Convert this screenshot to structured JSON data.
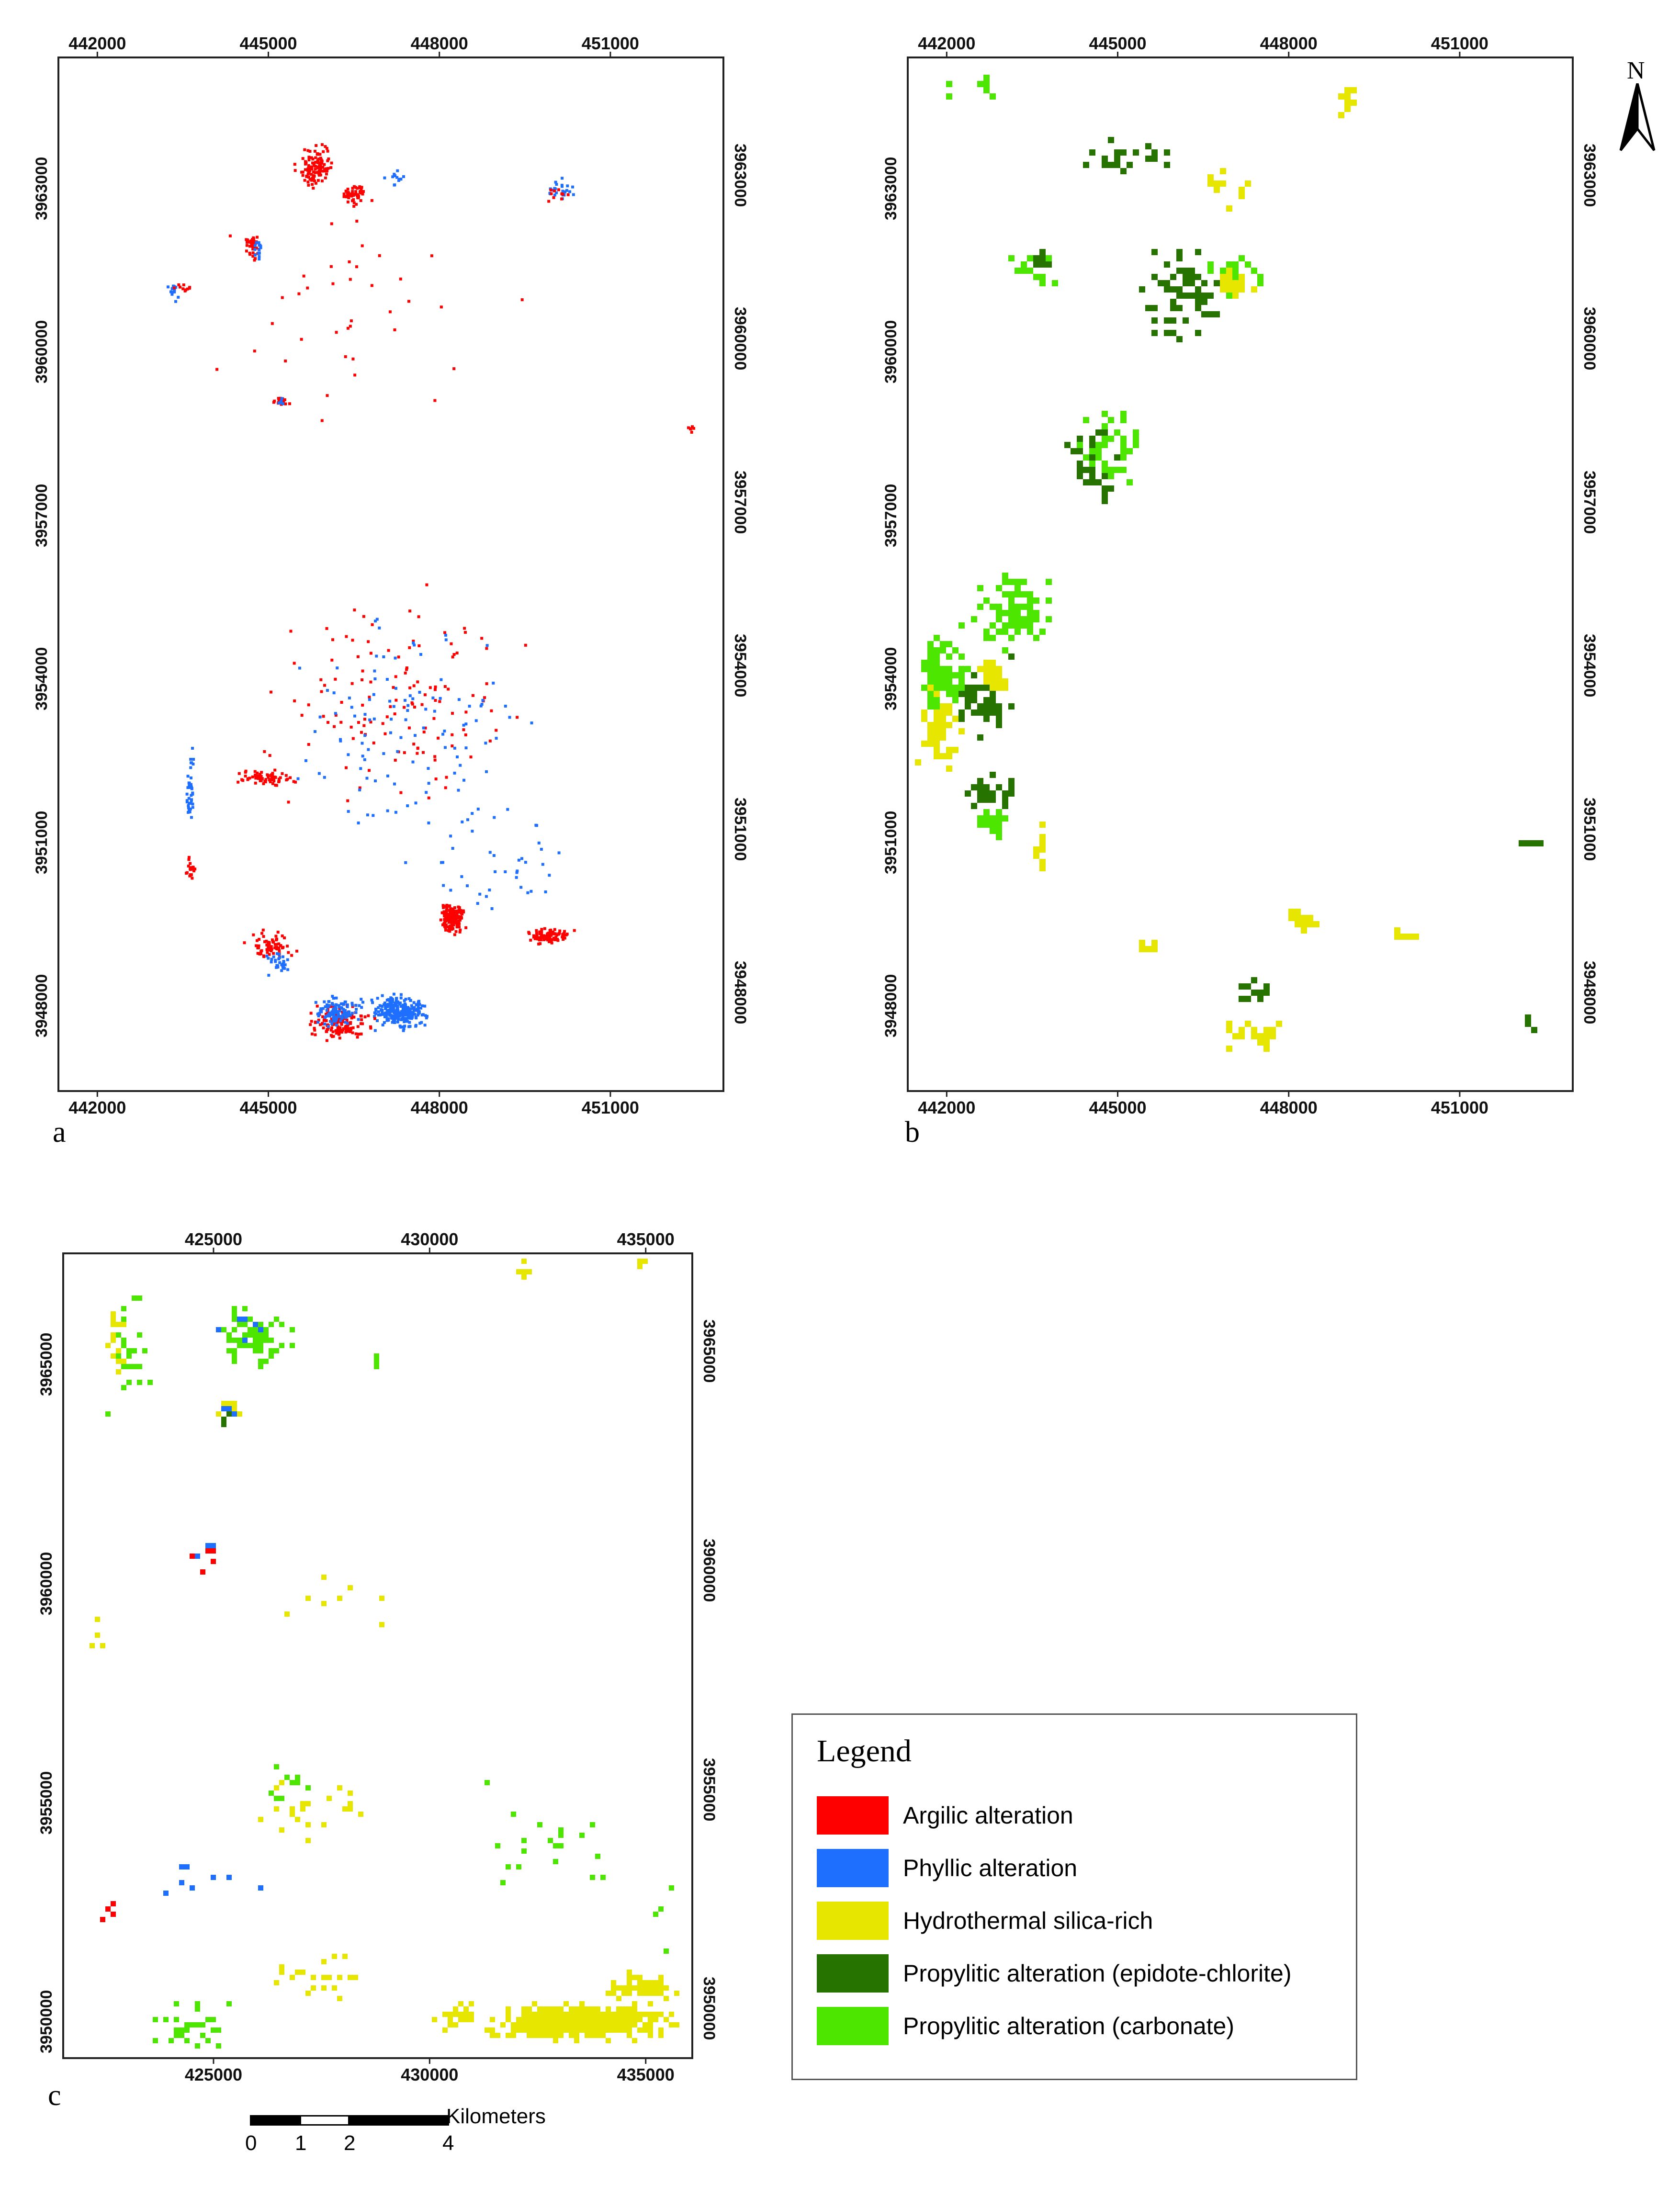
{
  "panels": {
    "a": {
      "letter": "a",
      "x_ticks": [
        "442000",
        "445000",
        "448000",
        "451000"
      ],
      "y_ticks": [
        "3963000",
        "3960000",
        "3957000",
        "3954000",
        "3951000",
        "3948000"
      ],
      "x_range": [
        441300,
        453000
      ],
      "y_range": [
        3946300,
        3965300
      ]
    },
    "b": {
      "letter": "b",
      "x_ticks": [
        "442000",
        "445000",
        "448000",
        "451000"
      ],
      "y_ticks": [
        "3963000",
        "3960000",
        "3957000",
        "3954000",
        "3951000",
        "3948000"
      ],
      "x_range": [
        441300,
        453000
      ],
      "y_range": [
        3946300,
        3965300
      ]
    },
    "c": {
      "letter": "c",
      "x_ticks": [
        "425000",
        "430000",
        "435000"
      ],
      "y_ticks": [
        "3965000",
        "3960000",
        "3955000",
        "3950000"
      ],
      "x_range": [
        421500,
        436100
      ],
      "y_range": [
        3949000,
        3967400
      ]
    }
  },
  "legend": {
    "title": "Legend",
    "items": [
      {
        "label": "Argilic alteration",
        "color": "#ff0000"
      },
      {
        "label": "Phyllic alteration",
        "color": "#1f6fff"
      },
      {
        "label": "Hydrothermal silica-rich",
        "color": "#e6e600"
      },
      {
        "label": "Propylitic alteration (epidote-chlorite)",
        "color": "#267300"
      },
      {
        "label": "Propylitic alteration (carbonate)",
        "color": "#4ce600"
      }
    ]
  },
  "scale_bar": {
    "unit": "Kilometers",
    "labels": [
      "0",
      "1",
      "2",
      "4"
    ]
  },
  "north_arrow": {
    "label": "N",
    "icon": "north-arrow-icon"
  },
  "clusters": {
    "a": [
      {
        "cls": 0,
        "x": 445800,
        "y": 3963300,
        "rx": 400,
        "ry": 500,
        "n": 120
      },
      {
        "cls": 0,
        "x": 446500,
        "y": 3962800,
        "rx": 300,
        "ry": 250,
        "n": 60
      },
      {
        "cls": 0,
        "x": 444700,
        "y": 3961900,
        "rx": 150,
        "ry": 350,
        "n": 40
      },
      {
        "cls": 1,
        "x": 444800,
        "y": 3961800,
        "rx": 120,
        "ry": 250,
        "n": 15
      },
      {
        "cls": 1,
        "x": 443300,
        "y": 3961000,
        "rx": 150,
        "ry": 250,
        "n": 15
      },
      {
        "cls": 0,
        "x": 443500,
        "y": 3961100,
        "rx": 200,
        "ry": 200,
        "n": 10
      },
      {
        "cls": 1,
        "x": 447200,
        "y": 3963100,
        "rx": 250,
        "ry": 200,
        "n": 12
      },
      {
        "cls": 1,
        "x": 450100,
        "y": 3962900,
        "rx": 350,
        "ry": 300,
        "n": 25
      },
      {
        "cls": 0,
        "x": 450000,
        "y": 3962800,
        "rx": 300,
        "ry": 250,
        "n": 10
      },
      {
        "cls": 0,
        "x": 445200,
        "y": 3959000,
        "rx": 200,
        "ry": 100,
        "n": 18
      },
      {
        "cls": 1,
        "x": 445200,
        "y": 3959000,
        "rx": 150,
        "ry": 100,
        "n": 6
      },
      {
        "cls": 0,
        "x": 444900,
        "y": 3952100,
        "rx": 700,
        "ry": 200,
        "n": 70
      },
      {
        "cls": 1,
        "x": 443600,
        "y": 3952000,
        "rx": 100,
        "ry": 900,
        "n": 40
      },
      {
        "cls": 0,
        "x": 443600,
        "y": 3950400,
        "rx": 100,
        "ry": 300,
        "n": 20
      },
      {
        "cls": 0,
        "x": 448200,
        "y": 3949500,
        "rx": 300,
        "ry": 350,
        "n": 160
      },
      {
        "cls": 0,
        "x": 449900,
        "y": 3949200,
        "rx": 500,
        "ry": 180,
        "n": 90
      },
      {
        "cls": 0,
        "x": 445000,
        "y": 3949000,
        "rx": 600,
        "ry": 350,
        "n": 70
      },
      {
        "cls": 1,
        "x": 445200,
        "y": 3948700,
        "rx": 400,
        "ry": 300,
        "n": 30
      },
      {
        "cls": 1,
        "x": 447300,
        "y": 3947800,
        "rx": 600,
        "ry": 400,
        "n": 280
      },
      {
        "cls": 0,
        "x": 446200,
        "y": 3947600,
        "rx": 700,
        "ry": 400,
        "n": 160
      },
      {
        "cls": 1,
        "x": 446200,
        "y": 3947800,
        "rx": 500,
        "ry": 350,
        "n": 120
      },
      {
        "cls": 0,
        "x": 447000,
        "y": 3953500,
        "rx": 3000,
        "ry": 2500,
        "n": 130
      },
      {
        "cls": 1,
        "x": 447300,
        "y": 3953000,
        "rx": 2800,
        "ry": 2700,
        "n": 110
      },
      {
        "cls": 0,
        "x": 446500,
        "y": 3961000,
        "rx": 4000,
        "ry": 3000,
        "n": 40
      },
      {
        "cls": 1,
        "x": 449000,
        "y": 3950500,
        "rx": 1800,
        "ry": 1200,
        "n": 40
      },
      {
        "cls": 0,
        "x": 452400,
        "y": 3958500,
        "rx": 120,
        "ry": 200,
        "n": 6
      }
    ],
    "b": [
      {
        "cls": 4,
        "x": 442000,
        "y": 3954000,
        "rx": 700,
        "ry": 1000,
        "n": 90,
        "s": 1
      },
      {
        "cls": 2,
        "x": 441800,
        "y": 3953000,
        "rx": 500,
        "ry": 900,
        "n": 50,
        "s": 1
      },
      {
        "cls": 3,
        "x": 442600,
        "y": 3953600,
        "rx": 700,
        "ry": 900,
        "n": 60,
        "s": 1
      },
      {
        "cls": 2,
        "x": 442800,
        "y": 3954000,
        "rx": 300,
        "ry": 300,
        "n": 40,
        "s": 1
      },
      {
        "cls": 4,
        "x": 443200,
        "y": 3955200,
        "rx": 900,
        "ry": 900,
        "n": 90,
        "s": 1
      },
      {
        "cls": 4,
        "x": 442800,
        "y": 3951300,
        "rx": 400,
        "ry": 300,
        "n": 30,
        "s": 1
      },
      {
        "cls": 3,
        "x": 442800,
        "y": 3951800,
        "rx": 600,
        "ry": 400,
        "n": 30,
        "s": 1
      },
      {
        "cls": 3,
        "x": 444500,
        "y": 3957800,
        "rx": 600,
        "ry": 800,
        "n": 40,
        "s": 1
      },
      {
        "cls": 4,
        "x": 444800,
        "y": 3958200,
        "rx": 700,
        "ry": 900,
        "n": 40,
        "s": 1
      },
      {
        "cls": 3,
        "x": 446200,
        "y": 3961000,
        "rx": 900,
        "ry": 1200,
        "n": 60,
        "s": 1
      },
      {
        "cls": 4,
        "x": 447000,
        "y": 3961300,
        "rx": 700,
        "ry": 500,
        "n": 40,
        "s": 1
      },
      {
        "cls": 2,
        "x": 447000,
        "y": 3961200,
        "rx": 500,
        "ry": 400,
        "n": 20,
        "s": 1
      },
      {
        "cls": 3,
        "x": 445000,
        "y": 3963500,
        "rx": 1500,
        "ry": 600,
        "n": 20,
        "s": 1
      },
      {
        "cls": 2,
        "x": 446800,
        "y": 3963000,
        "rx": 700,
        "ry": 500,
        "n": 10,
        "s": 1
      },
      {
        "cls": 4,
        "x": 443500,
        "y": 3961500,
        "rx": 700,
        "ry": 500,
        "n": 15,
        "s": 1
      },
      {
        "cls": 3,
        "x": 443600,
        "y": 3961600,
        "rx": 300,
        "ry": 200,
        "n": 10,
        "s": 1
      },
      {
        "cls": 2,
        "x": 448900,
        "y": 3964500,
        "rx": 300,
        "ry": 600,
        "n": 12,
        "s": 1
      },
      {
        "cls": 4,
        "x": 442600,
        "y": 3964800,
        "rx": 900,
        "ry": 400,
        "n": 10,
        "s": 1
      },
      {
        "cls": 2,
        "x": 448200,
        "y": 3949500,
        "rx": 250,
        "ry": 200,
        "n": 30,
        "s": 1
      },
      {
        "cls": 2,
        "x": 450000,
        "y": 3949200,
        "rx": 250,
        "ry": 100,
        "n": 10,
        "s": 1
      },
      {
        "cls": 2,
        "x": 445500,
        "y": 3949000,
        "rx": 300,
        "ry": 200,
        "n": 10,
        "s": 1
      },
      {
        "cls": 2,
        "x": 447300,
        "y": 3947400,
        "rx": 900,
        "ry": 400,
        "n": 25,
        "s": 1
      },
      {
        "cls": 3,
        "x": 447300,
        "y": 3948200,
        "rx": 500,
        "ry": 400,
        "n": 15,
        "s": 1
      },
      {
        "cls": 2,
        "x": 443600,
        "y": 3950800,
        "rx": 80,
        "ry": 700,
        "n": 10,
        "s": 1
      },
      {
        "cls": 3,
        "x": 452200,
        "y": 3950900,
        "rx": 300,
        "ry": 200,
        "n": 4,
        "s": 1
      },
      {
        "cls": 3,
        "x": 452200,
        "y": 3947600,
        "rx": 200,
        "ry": 200,
        "n": 3,
        "s": 1
      }
    ],
    "c": [
      {
        "cls": 4,
        "x": 423000,
        "y": 3965200,
        "rx": 700,
        "ry": 1700,
        "n": 28,
        "s": 1
      },
      {
        "cls": 2,
        "x": 422700,
        "y": 3965500,
        "rx": 400,
        "ry": 1400,
        "n": 20,
        "s": 1
      },
      {
        "cls": 4,
        "x": 425900,
        "y": 3965500,
        "rx": 1100,
        "ry": 800,
        "n": 70,
        "s": 1
      },
      {
        "cls": 1,
        "x": 425600,
        "y": 3965700,
        "rx": 600,
        "ry": 500,
        "n": 6,
        "s": 0
      },
      {
        "cls": 0,
        "x": 425300,
        "y": 3963900,
        "rx": 250,
        "ry": 250,
        "n": 15,
        "s": 0
      },
      {
        "cls": 2,
        "x": 425300,
        "y": 3963900,
        "rx": 300,
        "ry": 300,
        "n": 15,
        "s": 0
      },
      {
        "cls": 1,
        "x": 425200,
        "y": 3963800,
        "rx": 250,
        "ry": 300,
        "n": 6,
        "s": 0
      },
      {
        "cls": 3,
        "x": 425200,
        "y": 3963700,
        "rx": 200,
        "ry": 200,
        "n": 4,
        "s": 0
      },
      {
        "cls": 4,
        "x": 428700,
        "y": 3964900,
        "rx": 400,
        "ry": 300,
        "n": 3,
        "s": 1
      },
      {
        "cls": 2,
        "x": 432200,
        "y": 3967100,
        "rx": 400,
        "ry": 300,
        "n": 5,
        "s": 1
      },
      {
        "cls": 2,
        "x": 434800,
        "y": 3967200,
        "rx": 300,
        "ry": 200,
        "n": 3,
        "s": 1
      },
      {
        "cls": 2,
        "x": 422300,
        "y": 3958700,
        "rx": 200,
        "ry": 700,
        "n": 8,
        "s": 1
      },
      {
        "cls": 0,
        "x": 424700,
        "y": 3960400,
        "rx": 600,
        "ry": 600,
        "n": 6,
        "s": 0
      },
      {
        "cls": 1,
        "x": 424700,
        "y": 3960700,
        "rx": 300,
        "ry": 300,
        "n": 3,
        "s": 0
      },
      {
        "cls": 2,
        "x": 428000,
        "y": 3959700,
        "rx": 2300,
        "ry": 900,
        "n": 8,
        "s": 1
      },
      {
        "cls": 4,
        "x": 426600,
        "y": 3955300,
        "rx": 700,
        "ry": 700,
        "n": 10,
        "s": 1
      },
      {
        "cls": 2,
        "x": 427200,
        "y": 3954800,
        "rx": 1600,
        "ry": 800,
        "n": 22,
        "s": 1
      },
      {
        "cls": 4,
        "x": 432500,
        "y": 3954000,
        "rx": 2200,
        "ry": 1600,
        "n": 20,
        "s": 1
      },
      {
        "cls": 1,
        "x": 424500,
        "y": 3953200,
        "rx": 2500,
        "ry": 1200,
        "n": 8,
        "s": 0
      },
      {
        "cls": 0,
        "x": 422600,
        "y": 3952400,
        "rx": 300,
        "ry": 600,
        "n": 4,
        "s": 0
      },
      {
        "cls": 2,
        "x": 427600,
        "y": 3951000,
        "rx": 2600,
        "ry": 800,
        "n": 22,
        "s": 1
      },
      {
        "cls": 4,
        "x": 424400,
        "y": 3949800,
        "rx": 1800,
        "ry": 700,
        "n": 30,
        "s": 1
      },
      {
        "cls": 2,
        "x": 433400,
        "y": 3949900,
        "rx": 2600,
        "ry": 500,
        "n": 500,
        "s": 1
      },
      {
        "cls": 2,
        "x": 434900,
        "y": 3950700,
        "rx": 1100,
        "ry": 400,
        "n": 90,
        "s": 1
      },
      {
        "cls": 2,
        "x": 430600,
        "y": 3950000,
        "rx": 800,
        "ry": 400,
        "n": 30,
        "s": 1
      },
      {
        "cls": 4,
        "x": 435300,
        "y": 3952500,
        "rx": 500,
        "ry": 1800,
        "n": 4,
        "s": 1
      }
    ]
  }
}
